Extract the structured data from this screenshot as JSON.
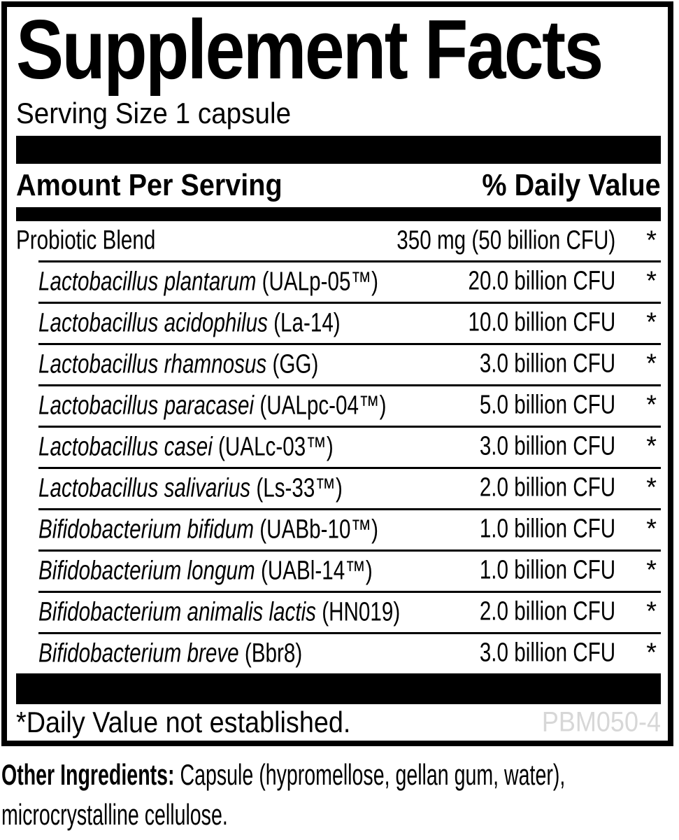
{
  "label": {
    "title": "Supplement Facts",
    "serving_size": "Serving Size 1 capsule",
    "header": {
      "amount": "Amount Per Serving",
      "daily_value": "% Daily Value"
    },
    "blend": {
      "name": "Probiotic Blend",
      "amount": "350 mg (50 billion CFU)",
      "dv": "*"
    },
    "strains": [
      {
        "species": "Lactobacillus plantarum",
        "strain": " (UALp-05™)",
        "amount": "20.0 billion CFU",
        "dv": "*"
      },
      {
        "species": "Lactobacillus acidophilus",
        "strain": " (La-14)",
        "amount": "10.0 billion CFU",
        "dv": "*"
      },
      {
        "species": "Lactobacillus rhamnosus",
        "strain": " (GG)",
        "amount": "3.0 billion CFU",
        "dv": "*"
      },
      {
        "species": "Lactobacillus paracasei",
        "strain": " (UALpc-04™)",
        "amount": "5.0 billion CFU",
        "dv": "*"
      },
      {
        "species": "Lactobacillus casei",
        "strain": " (UALc-03™)",
        "amount": "3.0 billion CFU",
        "dv": "*"
      },
      {
        "species": "Lactobacillus salivarius",
        "strain": " (Ls-33™)",
        "amount": "2.0 billion CFU",
        "dv": "*"
      },
      {
        "species": "Bifidobacterium bifidum",
        "strain": " (UABb-10™)",
        "amount": "1.0 billion CFU",
        "dv": "*"
      },
      {
        "species": "Bifidobacterium longum",
        "strain": " (UABl-14™)",
        "amount": "1.0 billion CFU",
        "dv": "*"
      },
      {
        "species": "Bifidobacterium animalis lactis",
        "strain": " (HN019)",
        "amount": "2.0 billion CFU",
        "dv": "*"
      },
      {
        "species": "Bifidobacterium breve",
        "strain": " (Bbr8)",
        "amount": "3.0 billion CFU",
        "dv": "*"
      }
    ],
    "footnote": "*Daily Value not established.",
    "product_code": "PBM050-4",
    "other_ingredients": {
      "label": "Other Ingredients:",
      "line1": " Capsule (hypromellose, gellan gum, water),",
      "line2": "microcrystalline cellulose."
    }
  },
  "colors": {
    "ink": "#000000",
    "background": "#ffffff",
    "product_code_gray": "#d7d7d7"
  }
}
